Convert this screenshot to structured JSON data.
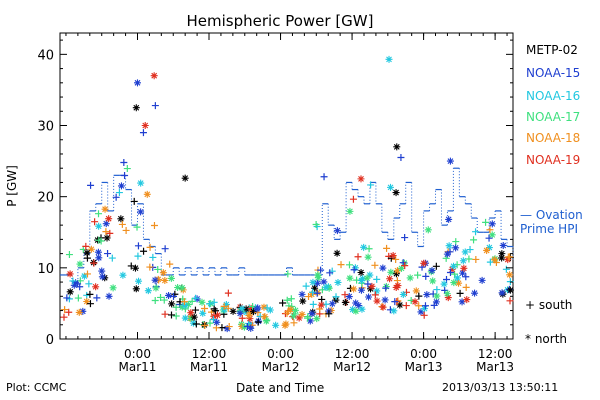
{
  "chart_data": {
    "type": "scatter",
    "title": "Hemispheric Power [GW]",
    "ylabel": "P [GW]",
    "xlabel": "Date and Time",
    "ylim": [
      0,
      43
    ],
    "yticks": [
      0,
      10,
      20,
      30,
      40
    ],
    "xlim_hours": [
      0,
      76
    ],
    "x_ticks": [
      {
        "time": "0:00",
        "date": "Mar11"
      },
      {
        "time": "12:00",
        "date": "Mar11"
      },
      {
        "time": "0:00",
        "date": "Mar12"
      },
      {
        "time": "12:00",
        "date": "Mar12"
      },
      {
        "time": "0:00",
        "date": "Mar13"
      },
      {
        "time": "12:00",
        "date": "Mar13"
      }
    ],
    "series": [
      {
        "name": "METP-02",
        "color": "#000000"
      },
      {
        "name": "NOAA-15",
        "color": "#1f3fd0"
      },
      {
        "name": "NOAA-16",
        "color": "#22c8e0"
      },
      {
        "name": "NOAA-17",
        "color": "#3fe07f"
      },
      {
        "name": "NOAA-18",
        "color": "#f09020"
      },
      {
        "name": "NOAA-19",
        "color": "#e03020"
      }
    ],
    "ovation": {
      "label_line1": "— Ovation",
      "label_line2": "Prime HPI",
      "color": "#1f5fd0",
      "x": [
        0,
        1,
        2,
        3,
        4,
        5,
        6,
        7,
        8,
        9,
        10,
        11,
        12,
        13,
        14,
        15,
        16,
        17,
        18,
        19,
        20,
        21,
        22,
        23,
        24,
        25,
        26,
        27,
        28,
        29,
        30,
        31,
        32,
        33,
        34,
        35,
        36,
        37,
        38,
        39,
        40,
        41,
        42,
        43,
        44,
        45,
        46,
        47,
        48,
        49,
        50,
        51,
        52,
        53,
        54,
        55,
        56,
        57,
        58,
        59,
        60,
        61,
        62,
        63,
        64,
        65,
        66,
        67,
        68,
        69,
        70,
        71,
        72,
        73,
        74,
        75,
        76
      ],
      "y": [
        9,
        9,
        8,
        10,
        12,
        18,
        19,
        22,
        18,
        23,
        23,
        21,
        16,
        19,
        14,
        13,
        12,
        9,
        9,
        10,
        9,
        10,
        9,
        10,
        9,
        10,
        9,
        10,
        9,
        9,
        10,
        9,
        9,
        9,
        9,
        9,
        9,
        9,
        10,
        9,
        9,
        9,
        9,
        9,
        19,
        16,
        14,
        15,
        22,
        21,
        20,
        19,
        22,
        19,
        15,
        14,
        17,
        19,
        22,
        15,
        13,
        18,
        19,
        21,
        16,
        18,
        24,
        20,
        19,
        17,
        15,
        15,
        17,
        18,
        14,
        13,
        11
      ]
    },
    "markers_legend": {
      "south": "+ south",
      "north": "* north"
    }
  },
  "footer": {
    "plot_label": "Plot: CCMC",
    "timestamp": "2013/03/13 13:50:11"
  }
}
